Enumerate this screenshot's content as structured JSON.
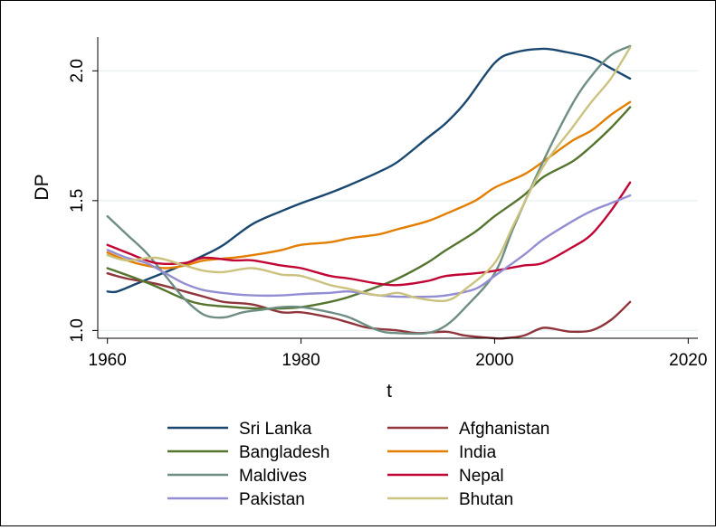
{
  "chart_data": {
    "type": "line",
    "title": "",
    "xlabel": "t",
    "ylabel": "DP",
    "xlim": [
      1959,
      2021
    ],
    "ylim": [
      0.97,
      2.13
    ],
    "xticks": [
      1960,
      1980,
      2000,
      2020
    ],
    "xtick_labels": [
      "1960",
      "1980",
      "2000",
      "2020"
    ],
    "yticks": [
      1.0,
      1.5,
      2.0
    ],
    "ytick_labels": [
      "1.0",
      "1.5",
      "2.0"
    ],
    "grid": "horizontal",
    "legend_position": "bottom",
    "series": [
      {
        "name": "Sri Lanka",
        "color": "#1a476f",
        "x": [
          1960,
          1961,
          1963,
          1965,
          1967,
          1970,
          1972,
          1975,
          1978,
          1980,
          1983,
          1985,
          1988,
          1990,
          1993,
          1995,
          1997,
          2000,
          2002,
          2005,
          2007,
          2010,
          2012,
          2014
        ],
        "y": [
          1.15,
          1.15,
          1.18,
          1.21,
          1.24,
          1.29,
          1.33,
          1.41,
          1.46,
          1.49,
          1.53,
          1.56,
          1.61,
          1.65,
          1.74,
          1.8,
          1.88,
          2.03,
          2.07,
          2.085,
          2.075,
          2.05,
          2.01,
          1.97
        ]
      },
      {
        "name": "Afghanistan",
        "color": "#90353b",
        "x": [
          1960,
          1962,
          1965,
          1968,
          1970,
          1972,
          1975,
          1978,
          1980,
          1983,
          1985,
          1987,
          1990,
          1992,
          1995,
          1997,
          2000,
          2001,
          2003,
          2005,
          2007,
          2008,
          2010,
          2012,
          2014
        ],
        "y": [
          1.22,
          1.2,
          1.18,
          1.15,
          1.13,
          1.11,
          1.1,
          1.07,
          1.07,
          1.05,
          1.03,
          1.01,
          1.0,
          0.99,
          0.995,
          0.98,
          0.97,
          0.97,
          0.98,
          1.01,
          1.0,
          0.995,
          1.0,
          1.04,
          1.11
        ]
      },
      {
        "name": "Bangladesh",
        "color": "#55752f",
        "x": [
          1960,
          1963,
          1965,
          1968,
          1970,
          1973,
          1975,
          1978,
          1980,
          1983,
          1985,
          1988,
          1990,
          1993,
          1995,
          1998,
          2000,
          2003,
          2005,
          2008,
          2010,
          2012,
          2014
        ],
        "y": [
          1.24,
          1.2,
          1.17,
          1.12,
          1.1,
          1.09,
          1.085,
          1.085,
          1.09,
          1.11,
          1.13,
          1.17,
          1.2,
          1.26,
          1.31,
          1.38,
          1.44,
          1.52,
          1.59,
          1.65,
          1.71,
          1.78,
          1.86
        ]
      },
      {
        "name": "India",
        "color": "#e37e00",
        "x": [
          1960,
          1962,
          1964,
          1966,
          1968,
          1970,
          1973,
          1975,
          1978,
          1980,
          1983,
          1985,
          1988,
          1990,
          1993,
          1995,
          1998,
          2000,
          2003,
          2005,
          2008,
          2010,
          2012,
          2014
        ],
        "y": [
          1.3,
          1.27,
          1.25,
          1.24,
          1.25,
          1.27,
          1.28,
          1.29,
          1.31,
          1.33,
          1.34,
          1.355,
          1.37,
          1.39,
          1.42,
          1.45,
          1.5,
          1.55,
          1.6,
          1.65,
          1.73,
          1.77,
          1.83,
          1.88
        ]
      },
      {
        "name": "Maldives",
        "color": "#6e8e84",
        "x": [
          1960,
          1962,
          1964,
          1966,
          1968,
          1970,
          1972,
          1974,
          1976,
          1978,
          1980,
          1983,
          1985,
          1988,
          1990,
          1993,
          1995,
          1997,
          2000,
          2002,
          2005,
          2008,
          2010,
          2012,
          2014
        ],
        "y": [
          1.44,
          1.37,
          1.3,
          1.21,
          1.12,
          1.06,
          1.05,
          1.07,
          1.08,
          1.09,
          1.09,
          1.07,
          1.05,
          1.0,
          0.99,
          0.99,
          1.02,
          1.09,
          1.22,
          1.4,
          1.65,
          1.87,
          1.98,
          2.06,
          2.095
        ]
      },
      {
        "name": "Nepal",
        "color": "#c10534",
        "x": [
          1960,
          1962,
          1965,
          1968,
          1970,
          1973,
          1975,
          1978,
          1980,
          1983,
          1985,
          1988,
          1990,
          1993,
          1995,
          1998,
          2000,
          2003,
          2005,
          2008,
          2010,
          2012,
          2014
        ],
        "y": [
          1.33,
          1.3,
          1.26,
          1.26,
          1.28,
          1.27,
          1.27,
          1.25,
          1.24,
          1.21,
          1.2,
          1.18,
          1.175,
          1.19,
          1.21,
          1.22,
          1.23,
          1.25,
          1.26,
          1.32,
          1.37,
          1.46,
          1.57
        ]
      },
      {
        "name": "Pakistan",
        "color": "#938dd2",
        "x": [
          1960,
          1962,
          1964,
          1966,
          1968,
          1970,
          1973,
          1975,
          1978,
          1980,
          1983,
          1985,
          1988,
          1990,
          1993,
          1995,
          1998,
          2000,
          2003,
          2005,
          2008,
          2010,
          2012,
          2014
        ],
        "y": [
          1.31,
          1.28,
          1.26,
          1.22,
          1.18,
          1.155,
          1.14,
          1.135,
          1.135,
          1.14,
          1.145,
          1.15,
          1.135,
          1.13,
          1.13,
          1.135,
          1.16,
          1.21,
          1.29,
          1.35,
          1.42,
          1.46,
          1.49,
          1.52
        ]
      },
      {
        "name": "Bhutan",
        "color": "#cac27e",
        "x": [
          1960,
          1962,
          1965,
          1968,
          1970,
          1972,
          1975,
          1978,
          1980,
          1983,
          1985,
          1988,
          1990,
          1992,
          1995,
          1997,
          2000,
          2002,
          2005,
          2008,
          2010,
          2012,
          2014
        ],
        "y": [
          1.29,
          1.27,
          1.28,
          1.25,
          1.23,
          1.225,
          1.24,
          1.215,
          1.21,
          1.175,
          1.16,
          1.135,
          1.145,
          1.125,
          1.115,
          1.16,
          1.26,
          1.41,
          1.63,
          1.78,
          1.88,
          1.97,
          2.09
        ]
      }
    ]
  }
}
